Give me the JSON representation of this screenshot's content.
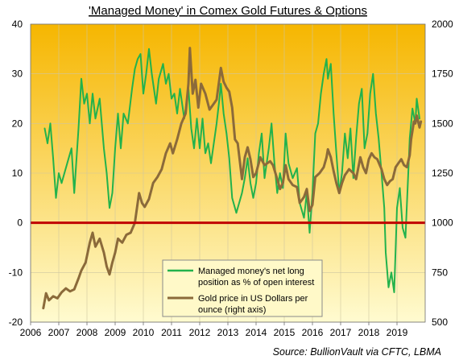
{
  "chart_data": {
    "type": "line",
    "title": "'Managed Money' in Comex Gold Futures & Options",
    "source": "Source:  BullionVault via CFTC, LBMA",
    "x_range": [
      2006,
      2020
    ],
    "x_ticks": [
      "2006",
      "2007",
      "2008",
      "2009",
      "2010",
      "2011",
      "2012",
      "2013",
      "2014",
      "2015",
      "2016",
      "2017",
      "2018",
      "2019"
    ],
    "ylim_left": [
      -20,
      40
    ],
    "y_ticks_left": [
      "-20",
      "-10",
      "0",
      "10",
      "20",
      "30",
      "40"
    ],
    "ylim_right": [
      500,
      2000
    ],
    "y_ticks_right": [
      "500",
      "750",
      "1000",
      "1250",
      "1500",
      "1750",
      "2000"
    ],
    "reference_line": {
      "axis": "left",
      "value": 0,
      "color": "#c00000"
    },
    "background_gradient": {
      "top": "#f6b600",
      "bottom": "#fffbd0"
    },
    "legend": {
      "placement": "bottom-center",
      "entries": [
        "Managed money's net long position as % of open interest",
        "Gold price in US Dollars per ounce (right axis)"
      ]
    },
    "series": [
      {
        "name": "Managed money's net long position as % of open interest",
        "axis": "left",
        "color": "#22b24c",
        "points": [
          [
            2006.5,
            19
          ],
          [
            2006.6,
            16
          ],
          [
            2006.7,
            20
          ],
          [
            2006.8,
            13
          ],
          [
            2006.9,
            5
          ],
          [
            2007.0,
            10
          ],
          [
            2007.1,
            8
          ],
          [
            2007.3,
            12
          ],
          [
            2007.45,
            15
          ],
          [
            2007.55,
            6
          ],
          [
            2007.7,
            19
          ],
          [
            2007.8,
            29
          ],
          [
            2007.9,
            24
          ],
          [
            2008.0,
            26
          ],
          [
            2008.1,
            20
          ],
          [
            2008.2,
            26
          ],
          [
            2008.3,
            21
          ],
          [
            2008.45,
            25
          ],
          [
            2008.6,
            15
          ],
          [
            2008.7,
            10
          ],
          [
            2008.8,
            3
          ],
          [
            2008.9,
            6
          ],
          [
            2009.0,
            15
          ],
          [
            2009.1,
            22
          ],
          [
            2009.2,
            15
          ],
          [
            2009.3,
            22
          ],
          [
            2009.45,
            20
          ],
          [
            2009.6,
            27
          ],
          [
            2009.7,
            31
          ],
          [
            2009.8,
            33
          ],
          [
            2009.9,
            34
          ],
          [
            2010.0,
            26
          ],
          [
            2010.1,
            30
          ],
          [
            2010.2,
            35
          ],
          [
            2010.3,
            30
          ],
          [
            2010.45,
            24
          ],
          [
            2010.55,
            29
          ],
          [
            2010.7,
            32
          ],
          [
            2010.8,
            28
          ],
          [
            2010.9,
            30
          ],
          [
            2011.0,
            25
          ],
          [
            2011.1,
            26
          ],
          [
            2011.2,
            22
          ],
          [
            2011.3,
            27
          ],
          [
            2011.45,
            21
          ],
          [
            2011.6,
            27
          ],
          [
            2011.7,
            19
          ],
          [
            2011.8,
            15
          ],
          [
            2011.9,
            21
          ],
          [
            2012.0,
            15
          ],
          [
            2012.1,
            21
          ],
          [
            2012.2,
            14
          ],
          [
            2012.3,
            16
          ],
          [
            2012.4,
            12
          ],
          [
            2012.5,
            16
          ],
          [
            2012.6,
            20
          ],
          [
            2012.7,
            25
          ],
          [
            2012.75,
            28
          ],
          [
            2012.85,
            22
          ],
          [
            2012.95,
            18
          ],
          [
            2013.05,
            13
          ],
          [
            2013.15,
            5
          ],
          [
            2013.3,
            2
          ],
          [
            2013.5,
            6
          ],
          [
            2013.6,
            9
          ],
          [
            2013.7,
            13
          ],
          [
            2013.8,
            8
          ],
          [
            2013.9,
            5
          ],
          [
            2014.0,
            8
          ],
          [
            2014.1,
            14
          ],
          [
            2014.2,
            18
          ],
          [
            2014.3,
            9
          ],
          [
            2014.45,
            15
          ],
          [
            2014.55,
            20
          ],
          [
            2014.65,
            12
          ],
          [
            2014.75,
            6
          ],
          [
            2014.85,
            10
          ],
          [
            2014.95,
            7
          ],
          [
            2015.05,
            18
          ],
          [
            2015.15,
            12
          ],
          [
            2015.3,
            9
          ],
          [
            2015.45,
            11
          ],
          [
            2015.55,
            4
          ],
          [
            2015.7,
            1
          ],
          [
            2015.8,
            6
          ],
          [
            2015.9,
            -2
          ],
          [
            2016.0,
            6
          ],
          [
            2016.1,
            18
          ],
          [
            2016.2,
            20
          ],
          [
            2016.3,
            26
          ],
          [
            2016.4,
            30
          ],
          [
            2016.5,
            33
          ],
          [
            2016.55,
            29
          ],
          [
            2016.65,
            32
          ],
          [
            2016.75,
            22
          ],
          [
            2016.85,
            14
          ],
          [
            2016.95,
            6
          ],
          [
            2017.05,
            10
          ],
          [
            2017.15,
            18
          ],
          [
            2017.25,
            13
          ],
          [
            2017.35,
            19
          ],
          [
            2017.45,
            9
          ],
          [
            2017.55,
            17
          ],
          [
            2017.65,
            24
          ],
          [
            2017.75,
            27
          ],
          [
            2017.85,
            15
          ],
          [
            2017.95,
            18
          ],
          [
            2018.05,
            26
          ],
          [
            2018.15,
            30
          ],
          [
            2018.25,
            22
          ],
          [
            2018.35,
            17
          ],
          [
            2018.45,
            10
          ],
          [
            2018.55,
            3
          ],
          [
            2018.6,
            -6
          ],
          [
            2018.7,
            -13
          ],
          [
            2018.8,
            -10
          ],
          [
            2018.9,
            -14
          ],
          [
            2019.0,
            3
          ],
          [
            2019.1,
            7
          ],
          [
            2019.2,
            -1
          ],
          [
            2019.3,
            -3
          ],
          [
            2019.4,
            10
          ],
          [
            2019.45,
            17
          ],
          [
            2019.55,
            23
          ],
          [
            2019.65,
            20
          ],
          [
            2019.7,
            25
          ],
          [
            2019.8,
            21
          ]
        ]
      },
      {
        "name": "Gold price in US Dollars per ounce (right axis)",
        "axis": "right",
        "color": "#8b6a3a",
        "points": [
          [
            2006.45,
            570
          ],
          [
            2006.55,
            645
          ],
          [
            2006.65,
            610
          ],
          [
            2006.8,
            630
          ],
          [
            2006.95,
            620
          ],
          [
            2007.1,
            650
          ],
          [
            2007.25,
            670
          ],
          [
            2007.4,
            655
          ],
          [
            2007.55,
            665
          ],
          [
            2007.7,
            720
          ],
          [
            2007.8,
            760
          ],
          [
            2007.95,
            800
          ],
          [
            2008.1,
            900
          ],
          [
            2008.2,
            950
          ],
          [
            2008.3,
            880
          ],
          [
            2008.45,
            920
          ],
          [
            2008.6,
            850
          ],
          [
            2008.7,
            780
          ],
          [
            2008.8,
            740
          ],
          [
            2008.9,
            800
          ],
          [
            2009.0,
            850
          ],
          [
            2009.1,
            920
          ],
          [
            2009.25,
            900
          ],
          [
            2009.4,
            940
          ],
          [
            2009.55,
            950
          ],
          [
            2009.7,
            1000
          ],
          [
            2009.85,
            1150
          ],
          [
            2009.95,
            1100
          ],
          [
            2010.05,
            1080
          ],
          [
            2010.2,
            1120
          ],
          [
            2010.35,
            1200
          ],
          [
            2010.5,
            1230
          ],
          [
            2010.65,
            1270
          ],
          [
            2010.8,
            1350
          ],
          [
            2010.95,
            1400
          ],
          [
            2011.05,
            1350
          ],
          [
            2011.2,
            1420
          ],
          [
            2011.35,
            1500
          ],
          [
            2011.5,
            1550
          ],
          [
            2011.6,
            1700
          ],
          [
            2011.65,
            1880
          ],
          [
            2011.75,
            1650
          ],
          [
            2011.85,
            1720
          ],
          [
            2011.95,
            1580
          ],
          [
            2012.05,
            1700
          ],
          [
            2012.2,
            1650
          ],
          [
            2012.35,
            1570
          ],
          [
            2012.5,
            1600
          ],
          [
            2012.6,
            1620
          ],
          [
            2012.75,
            1780
          ],
          [
            2012.85,
            1710
          ],
          [
            2012.95,
            1680
          ],
          [
            2013.05,
            1660
          ],
          [
            2013.15,
            1580
          ],
          [
            2013.25,
            1420
          ],
          [
            2013.35,
            1400
          ],
          [
            2013.5,
            1220
          ],
          [
            2013.6,
            1330
          ],
          [
            2013.7,
            1380
          ],
          [
            2013.8,
            1320
          ],
          [
            2013.9,
            1230
          ],
          [
            2014.0,
            1250
          ],
          [
            2014.15,
            1330
          ],
          [
            2014.3,
            1290
          ],
          [
            2014.5,
            1310
          ],
          [
            2014.6,
            1290
          ],
          [
            2014.75,
            1220
          ],
          [
            2014.85,
            1170
          ],
          [
            2014.95,
            1200
          ],
          [
            2015.05,
            1290
          ],
          [
            2015.15,
            1220
          ],
          [
            2015.3,
            1190
          ],
          [
            2015.45,
            1180
          ],
          [
            2015.55,
            1100
          ],
          [
            2015.7,
            1130
          ],
          [
            2015.8,
            1170
          ],
          [
            2015.9,
            1060
          ],
          [
            2016.0,
            1090
          ],
          [
            2016.1,
            1230
          ],
          [
            2016.25,
            1250
          ],
          [
            2016.4,
            1280
          ],
          [
            2016.5,
            1330
          ],
          [
            2016.55,
            1370
          ],
          [
            2016.65,
            1330
          ],
          [
            2016.75,
            1260
          ],
          [
            2016.85,
            1200
          ],
          [
            2016.95,
            1150
          ],
          [
            2017.05,
            1200
          ],
          [
            2017.15,
            1240
          ],
          [
            2017.3,
            1270
          ],
          [
            2017.45,
            1250
          ],
          [
            2017.55,
            1220
          ],
          [
            2017.7,
            1330
          ],
          [
            2017.8,
            1280
          ],
          [
            2017.9,
            1250
          ],
          [
            2018.0,
            1320
          ],
          [
            2018.1,
            1350
          ],
          [
            2018.2,
            1330
          ],
          [
            2018.3,
            1320
          ],
          [
            2018.45,
            1270
          ],
          [
            2018.55,
            1220
          ],
          [
            2018.65,
            1190
          ],
          [
            2018.75,
            1210
          ],
          [
            2018.85,
            1220
          ],
          [
            2018.95,
            1280
          ],
          [
            2019.05,
            1300
          ],
          [
            2019.15,
            1320
          ],
          [
            2019.25,
            1290
          ],
          [
            2019.35,
            1280
          ],
          [
            2019.45,
            1340
          ],
          [
            2019.5,
            1420
          ],
          [
            2019.6,
            1510
          ],
          [
            2019.65,
            1500
          ],
          [
            2019.7,
            1540
          ],
          [
            2019.8,
            1480
          ],
          [
            2019.85,
            1510
          ]
        ]
      }
    ]
  }
}
